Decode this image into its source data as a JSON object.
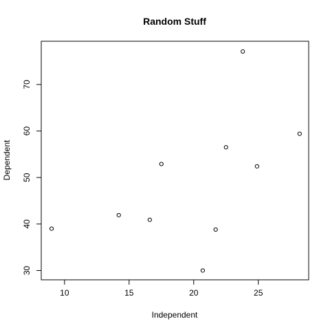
{
  "chart_data": {
    "type": "scatter",
    "title": "Random Stuff",
    "xlabel": "Independent",
    "ylabel": "Dependent",
    "xlim": [
      8.2,
      28.9
    ],
    "ylim": [
      28.0,
      79.3
    ],
    "x_ticks": [
      10,
      15,
      20,
      25
    ],
    "y_ticks": [
      30,
      40,
      50,
      60,
      70
    ],
    "grid": false,
    "legend": "none",
    "marker": "open-circle",
    "colors": {
      "points": "#000000",
      "axes": "#000000",
      "background": "#ffffff"
    },
    "points": [
      {
        "x": 9.0,
        "y": 39.0
      },
      {
        "x": 14.2,
        "y": 41.9
      },
      {
        "x": 16.6,
        "y": 40.9
      },
      {
        "x": 17.5,
        "y": 52.9
      },
      {
        "x": 20.7,
        "y": 30.0
      },
      {
        "x": 21.7,
        "y": 38.8
      },
      {
        "x": 22.5,
        "y": 56.5
      },
      {
        "x": 23.8,
        "y": 77.1
      },
      {
        "x": 24.9,
        "y": 52.4
      },
      {
        "x": 28.2,
        "y": 59.4
      }
    ]
  }
}
